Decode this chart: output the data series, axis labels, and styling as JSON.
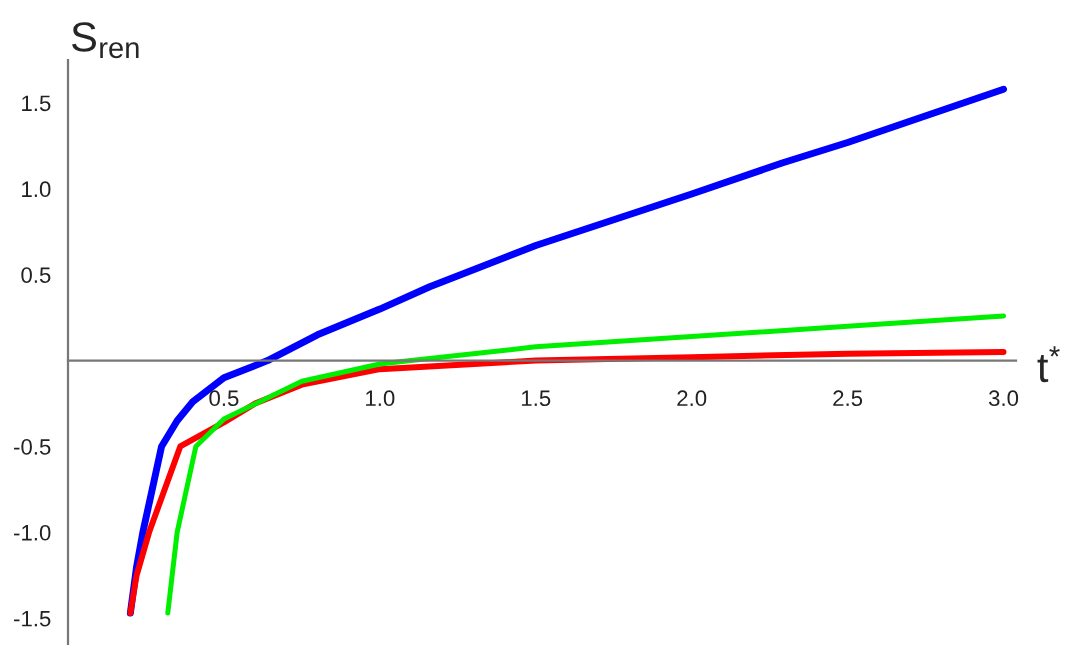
{
  "chart_data": {
    "type": "line",
    "xlabel": "t$^{*}$",
    "ylabel": "S$_{ren}$",
    "xlim": [
      0,
      3.04
    ],
    "ylim": [
      -1.65,
      1.75
    ],
    "xticks": [
      {
        "value": 0.5,
        "label": "0.5"
      },
      {
        "value": 1.0,
        "label": "1.0"
      },
      {
        "value": 1.5,
        "label": "1.5"
      },
      {
        "value": 2.0,
        "label": "2.0"
      },
      {
        "value": 2.5,
        "label": "2.5"
      },
      {
        "value": 3.0,
        "label": "3.0"
      }
    ],
    "yticks": [
      {
        "value": -1.5,
        "label": "-1.5"
      },
      {
        "value": -1.0,
        "label": "-1.0"
      },
      {
        "value": -0.5,
        "label": "-0.5"
      },
      {
        "value": 0.5,
        "label": "0.5"
      },
      {
        "value": 1.0,
        "label": "1.0"
      },
      {
        "value": 1.5,
        "label": "1.5"
      }
    ],
    "grid": false,
    "legend": false,
    "marker": "none",
    "line_style": "solid",
    "series": [
      {
        "color": "#0000ff",
        "x": [
          0.2,
          0.22,
          0.24,
          0.27,
          0.3,
          0.35,
          0.4,
          0.5,
          0.64,
          0.8,
          1.0,
          1.16,
          1.5,
          2.0,
          2.29,
          2.5,
          3.0
        ],
        "values": [
          -1.47,
          -1.2,
          -1.0,
          -0.75,
          -0.5,
          -0.35,
          -0.24,
          -0.1,
          0.0,
          0.15,
          0.3,
          0.43,
          0.67,
          0.97,
          1.15,
          1.27,
          1.58
        ]
      },
      {
        "color": "#ff0000",
        "x": [
          0.2,
          0.22,
          0.26,
          0.3,
          0.36,
          0.5,
          0.6,
          0.75,
          1.0,
          1.5,
          2.0,
          2.5,
          3.0
        ],
        "values": [
          -1.47,
          -1.25,
          -1.0,
          -0.8,
          -0.5,
          -0.36,
          -0.25,
          -0.14,
          -0.05,
          0.0,
          0.02,
          0.04,
          0.05
        ]
      },
      {
        "color": "#00ee00",
        "x": [
          0.32,
          0.35,
          0.41,
          0.5,
          0.75,
          1.0,
          1.1,
          1.5,
          2.0,
          2.5,
          3.0
        ],
        "values": [
          -1.47,
          -1.0,
          -0.5,
          -0.34,
          -0.12,
          -0.02,
          0.0,
          0.08,
          0.14,
          0.2,
          0.26
        ]
      }
    ]
  }
}
